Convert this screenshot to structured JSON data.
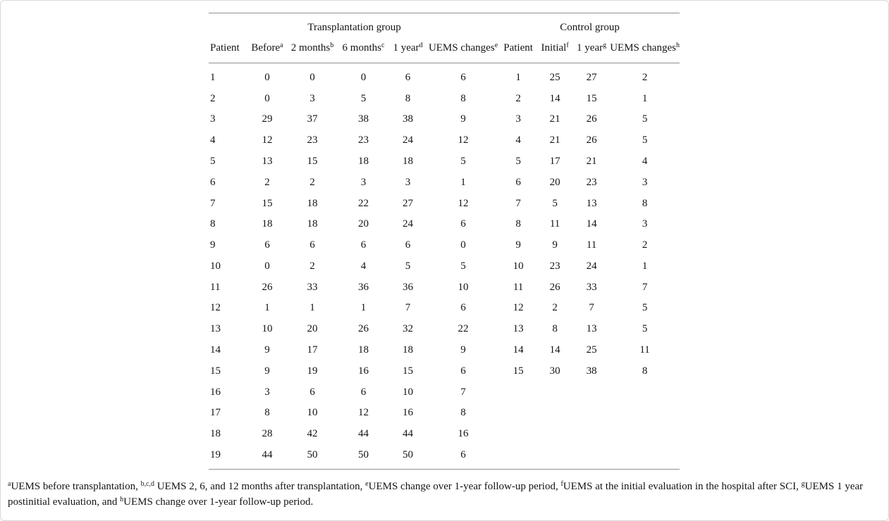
{
  "page": {
    "background_color": "#ffffff",
    "border_color": "#d8d8d8",
    "rule_color": "#8f8f8f",
    "text_color": "#141414"
  },
  "table": {
    "group_headers": [
      "Transplantation group",
      "Control group"
    ],
    "group_spans": [
      6,
      4
    ],
    "columns": [
      {
        "label": "Patient",
        "sup": ""
      },
      {
        "label": "Before",
        "sup": "a"
      },
      {
        "label": "2 months",
        "sup": "b"
      },
      {
        "label": "6 months",
        "sup": "c"
      },
      {
        "label": "1 year",
        "sup": "d"
      },
      {
        "label": "UEMS changes",
        "sup": "e"
      },
      {
        "label": "Patient",
        "sup": ""
      },
      {
        "label": "Initial",
        "sup": "f"
      },
      {
        "label": "1 year",
        "sup": "g"
      },
      {
        "label": "UEMS changes",
        "sup": "h"
      }
    ],
    "rows": [
      [
        "1",
        "0",
        "0",
        "0",
        "6",
        "6",
        "1",
        "25",
        "27",
        "2"
      ],
      [
        "2",
        "0",
        "3",
        "5",
        "8",
        "8",
        "2",
        "14",
        "15",
        "1"
      ],
      [
        "3",
        "29",
        "37",
        "38",
        "38",
        "9",
        "3",
        "21",
        "26",
        "5"
      ],
      [
        "4",
        "12",
        "23",
        "23",
        "24",
        "12",
        "4",
        "21",
        "26",
        "5"
      ],
      [
        "5",
        "13",
        "15",
        "18",
        "18",
        "5",
        "5",
        "17",
        "21",
        "4"
      ],
      [
        "6",
        "2",
        "2",
        "3",
        "3",
        "1",
        "6",
        "20",
        "23",
        "3"
      ],
      [
        "7",
        "15",
        "18",
        "22",
        "27",
        "12",
        "7",
        "5",
        "13",
        "8"
      ],
      [
        "8",
        "18",
        "18",
        "20",
        "24",
        "6",
        "8",
        "11",
        "14",
        "3"
      ],
      [
        "9",
        "6",
        "6",
        "6",
        "6",
        "0",
        "9",
        "9",
        "11",
        "2"
      ],
      [
        "10",
        "0",
        "2",
        "4",
        "5",
        "5",
        "10",
        "23",
        "24",
        "1"
      ],
      [
        "11",
        "26",
        "33",
        "36",
        "36",
        "10",
        "11",
        "26",
        "33",
        "7"
      ],
      [
        "12",
        "1",
        "1",
        "1",
        "7",
        "6",
        "12",
        "2",
        "7",
        "5"
      ],
      [
        "13",
        "10",
        "20",
        "26",
        "32",
        "22",
        "13",
        "8",
        "13",
        "5"
      ],
      [
        "14",
        "9",
        "17",
        "18",
        "18",
        "9",
        "14",
        "14",
        "25",
        "11"
      ],
      [
        "15",
        "9",
        "19",
        "16",
        "15",
        "6",
        "15",
        "30",
        "38",
        "8"
      ],
      [
        "16",
        "3",
        "6",
        "6",
        "10",
        "7",
        "",
        "",
        "",
        ""
      ],
      [
        "17",
        "8",
        "10",
        "12",
        "16",
        "8",
        "",
        "",
        "",
        ""
      ],
      [
        "18",
        "28",
        "42",
        "44",
        "44",
        "16",
        "",
        "",
        "",
        ""
      ],
      [
        "19",
        "44",
        "50",
        "50",
        "50",
        "6",
        "",
        "",
        "",
        ""
      ]
    ]
  },
  "footnote": {
    "segments": [
      {
        "sup": "a",
        "text": "UEMS before transplantation, "
      },
      {
        "sup": "b,c,d",
        "text": " UEMS 2, 6, and 12 months after transplantation, "
      },
      {
        "sup": "e",
        "text": "UEMS change over 1-year follow-up period, "
      },
      {
        "sup": "f",
        "text": "UEMS at the initial evaluation in the hospital after SCI, "
      },
      {
        "sup": "g",
        "text": "UEMS 1 year postinitial evaluation, and "
      },
      {
        "sup": "h",
        "text": "UEMS change over 1-year follow-up period."
      }
    ]
  }
}
